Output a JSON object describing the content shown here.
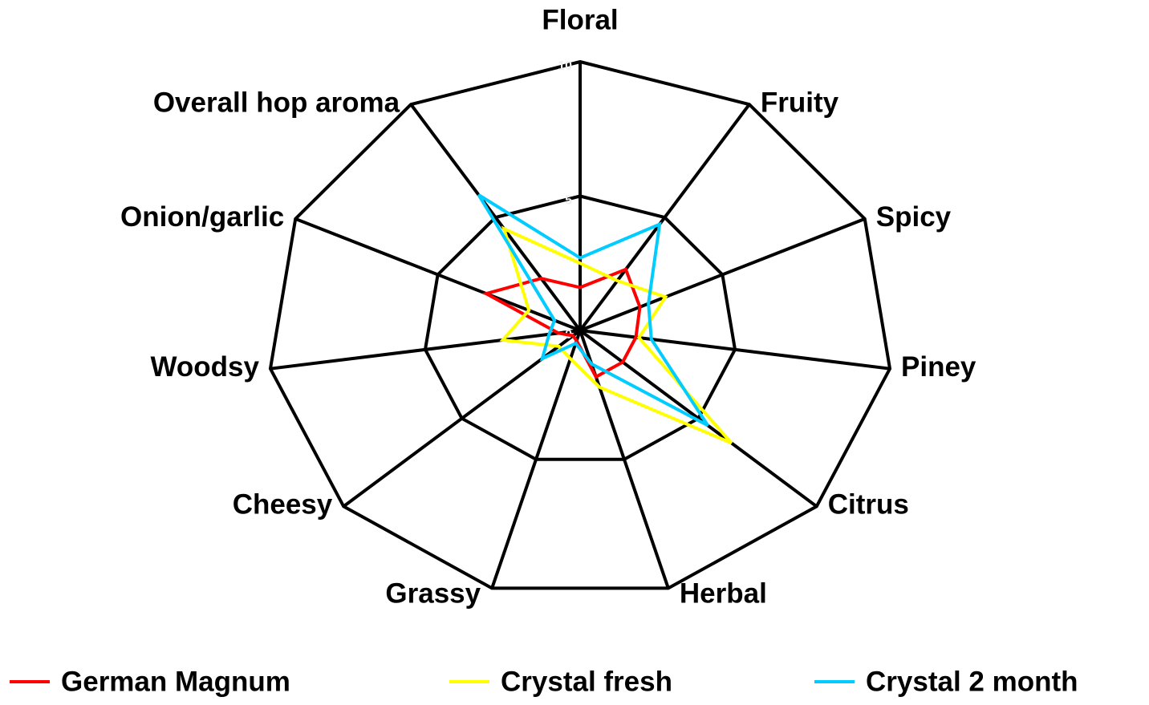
{
  "chart_data": {
    "type": "radar",
    "categories": [
      "Floral",
      "Fruity",
      "Spicy",
      "Piney",
      "Citrus",
      "Herbal",
      "Grassy",
      "Cheesy",
      "Woodsy",
      "Onion/garlic",
      "Overall hop aroma"
    ],
    "series": [
      {
        "name": "German Magnum",
        "color": "#ff0000",
        "values": [
          1.6,
          2.7,
          2.1,
          1.8,
          1.8,
          1.8,
          0.4,
          0.3,
          0.7,
          3.3,
          2.3
        ]
      },
      {
        "name": "Crystal fresh",
        "color": "#ffff00",
        "values": [
          2.5,
          2.2,
          3.0,
          1.9,
          6.4,
          2.2,
          1.1,
          0.9,
          2.5,
          1.8,
          4.5
        ]
      },
      {
        "name": "Crystal 2 month",
        "color": "#00ccff",
        "values": [
          2.7,
          4.7,
          2.4,
          2.3,
          5.4,
          1.3,
          0.5,
          1.6,
          1.0,
          0.9,
          6.0
        ]
      }
    ],
    "ylim": [
      0,
      10
    ],
    "yticks": [
      0,
      5,
      10
    ],
    "grid": true,
    "legend": "bottom"
  }
}
